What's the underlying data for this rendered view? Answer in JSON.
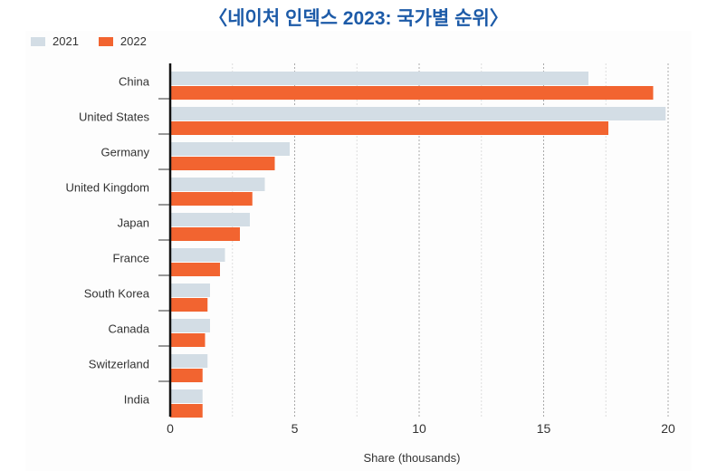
{
  "title": "〈네이처 인덱스 2023: 국가별 순위〉",
  "colors": {
    "2021": "#d3dde5",
    "2022": "#f26430",
    "title": "#1d5ba8"
  },
  "chart_data": {
    "type": "bar",
    "orientation": "horizontal",
    "title": "〈네이처 인덱스 2023: 국가별 순위〉",
    "xlabel": "Share (thousands)",
    "ylabel": "",
    "xlim": [
      0,
      20
    ],
    "xticks": [
      "0",
      "5",
      "10",
      "15",
      "20"
    ],
    "grid": true,
    "legend_position": "top-left",
    "categories": [
      "China",
      "United States",
      "Germany",
      "United Kingdom",
      "Japan",
      "France",
      "South Korea",
      "Canada",
      "Switzerland",
      "India"
    ],
    "series": [
      {
        "name": "2021",
        "values": [
          16.8,
          19.9,
          4.8,
          3.8,
          3.2,
          2.2,
          1.6,
          1.6,
          1.5,
          1.3
        ]
      },
      {
        "name": "2022",
        "values": [
          19.4,
          17.6,
          4.2,
          3.3,
          2.8,
          2.0,
          1.5,
          1.4,
          1.3,
          1.3
        ]
      }
    ]
  }
}
